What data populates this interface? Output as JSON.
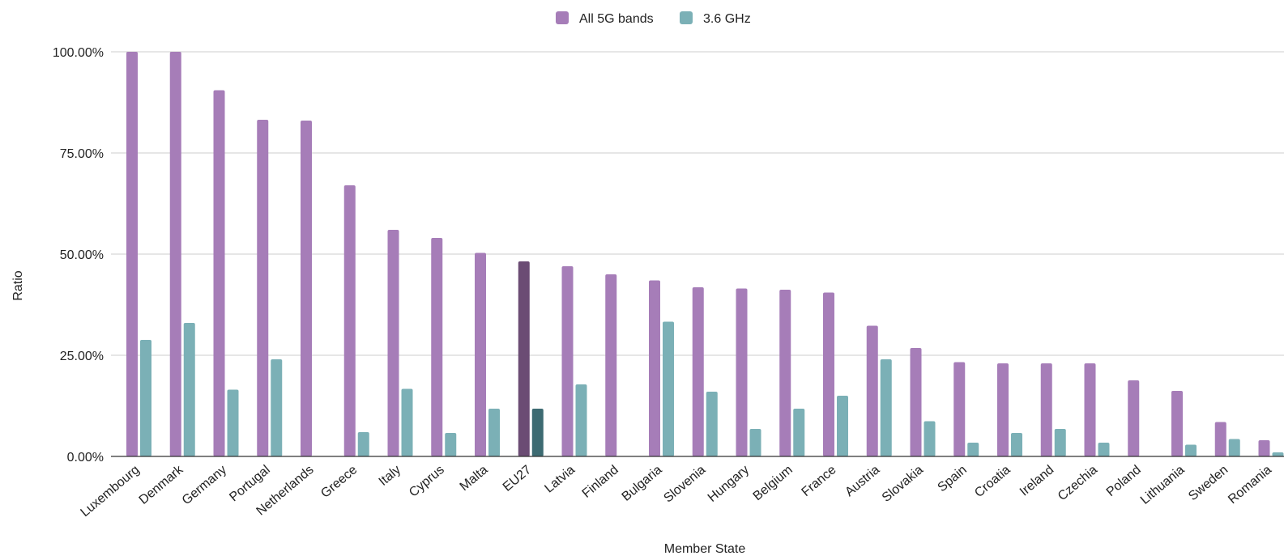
{
  "chart_data": {
    "type": "bar",
    "title": "",
    "xlabel": "Member State",
    "ylabel": "Ratio",
    "ylim": [
      0,
      1
    ],
    "yticks": [
      {
        "value": 0,
        "label": "0.00%"
      },
      {
        "value": 0.25,
        "label": "25.00%"
      },
      {
        "value": 0.5,
        "label": "50.00%"
      },
      {
        "value": 0.75,
        "label": "75.00%"
      },
      {
        "value": 1,
        "label": "100.00%"
      }
    ],
    "grid": true,
    "legend_position": "top-center",
    "categories": [
      "Luxembourg",
      "Denmark",
      "Germany",
      "Portugal",
      "Netherlands",
      "Greece",
      "Italy",
      "Cyprus",
      "Malta",
      "EU27",
      "Latvia",
      "Finland",
      "Bulgaria",
      "Slovenia",
      "Hungary",
      "Belgium",
      "France",
      "Austria",
      "Slovakia",
      "Spain",
      "Croatia",
      "Ireland",
      "Czechia",
      "Poland",
      "Lithuania",
      "Sweden",
      "Romania"
    ],
    "highlight_category": "EU27",
    "series": [
      {
        "name": "All 5G bands",
        "color": "#a67db8",
        "highlight_color": "#6b4c74",
        "values": [
          1.0,
          1.0,
          0.905,
          0.832,
          0.83,
          0.67,
          0.56,
          0.54,
          0.503,
          0.482,
          0.47,
          0.45,
          0.435,
          0.418,
          0.415,
          0.412,
          0.405,
          0.323,
          0.268,
          0.233,
          0.23,
          0.23,
          0.23,
          0.188,
          0.162,
          0.085,
          0.04
        ]
      },
      {
        "name": "3.6 GHz",
        "color": "#7bb0b6",
        "highlight_color": "#3d6b72",
        "values": [
          0.288,
          0.33,
          0.165,
          0.24,
          0.0,
          0.06,
          0.167,
          0.058,
          0.118,
          0.118,
          0.178,
          0.0,
          0.333,
          0.16,
          0.068,
          0.118,
          0.15,
          0.24,
          0.087,
          0.034,
          0.058,
          0.068,
          0.034,
          0.0,
          0.029,
          0.043,
          0.01
        ]
      }
    ]
  }
}
